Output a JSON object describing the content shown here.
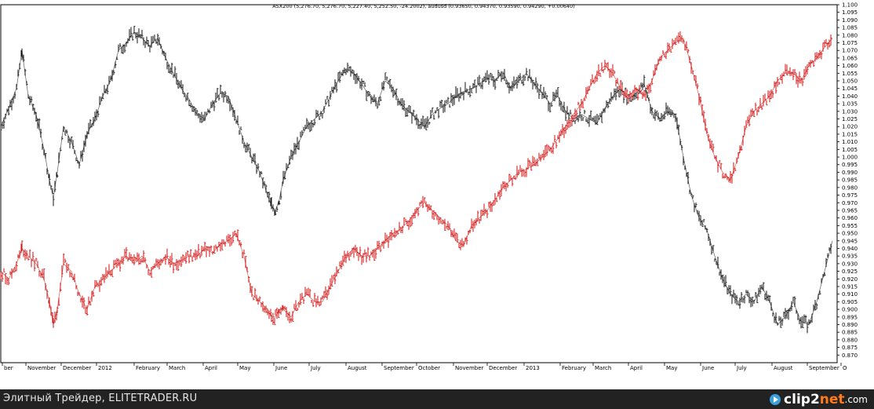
{
  "chart_data": {
    "type": "line",
    "title": "ASX200 (5,276.70, 5,276.70, 5,227.40, 5,252.50, -24.2002), audusd (0.93650, 0.94370, 0.93590, 0.94290, +0.00640)",
    "ylim": [
      0.865,
      1.1
    ],
    "yticks": [
      "1.100",
      "1.095",
      "1.090",
      "1.085",
      "1.080",
      "1.075",
      "1.070",
      "1.065",
      "1.060",
      "1.055",
      "1.050",
      "1.045",
      "1.040",
      "1.035",
      "1.030",
      "1.025",
      "1.020",
      "1.015",
      "1.010",
      "1.005",
      "1.000",
      "0.995",
      "0.990",
      "0.985",
      "0.980",
      "0.975",
      "0.970",
      "0.965",
      "0.960",
      "0.955",
      "0.950",
      "0.945",
      "0.940",
      "0.935",
      "0.930",
      "0.925",
      "0.920",
      "0.915",
      "0.910",
      "0.905",
      "0.900",
      "0.895",
      "0.890",
      "0.885",
      "0.880",
      "0.875",
      "0.870"
    ],
    "xlim": [
      0,
      1066
    ],
    "x_labels": [
      {
        "x": 2,
        "label": "ber"
      },
      {
        "x": 32,
        "label": "November"
      },
      {
        "x": 77,
        "label": "December"
      },
      {
        "x": 122,
        "label": "2012"
      },
      {
        "x": 170,
        "label": "February"
      },
      {
        "x": 212,
        "label": "March"
      },
      {
        "x": 258,
        "label": "April"
      },
      {
        "x": 302,
        "label": "May"
      },
      {
        "x": 348,
        "label": "June"
      },
      {
        "x": 393,
        "label": "July"
      },
      {
        "x": 440,
        "label": "August"
      },
      {
        "x": 486,
        "label": "September"
      },
      {
        "x": 530,
        "label": "October"
      },
      {
        "x": 577,
        "label": "November"
      },
      {
        "x": 620,
        "label": "December"
      },
      {
        "x": 667,
        "label": "2013"
      },
      {
        "x": 713,
        "label": "February"
      },
      {
        "x": 755,
        "label": "March"
      },
      {
        "x": 800,
        "label": "April"
      },
      {
        "x": 846,
        "label": "May"
      },
      {
        "x": 892,
        "label": "June"
      },
      {
        "x": 936,
        "label": "July"
      },
      {
        "x": 983,
        "label": "August"
      },
      {
        "x": 1028,
        "label": "September"
      },
      {
        "x": 1071,
        "label": "O"
      }
    ],
    "series": [
      {
        "name": "ASX200",
        "color": "#111111",
        "x": [
          0,
          10,
          20,
          27,
          35,
          45,
          55,
          62,
          67,
          72,
          80,
          90,
          100,
          110,
          120,
          130,
          140,
          150,
          160,
          170,
          180,
          190,
          200,
          210,
          220,
          230,
          240,
          250,
          260,
          270,
          280,
          290,
          300,
          310,
          320,
          330,
          340,
          345,
          350,
          355,
          360,
          370,
          380,
          390,
          400,
          410,
          420,
          430,
          440,
          450,
          460,
          470,
          480,
          490,
          500,
          510,
          520,
          530,
          540,
          550,
          560,
          570,
          580,
          590,
          600,
          610,
          620,
          630,
          640,
          650,
          660,
          670,
          680,
          690,
          700,
          710,
          720,
          730,
          740,
          750,
          760,
          770,
          780,
          790,
          800,
          810,
          820,
          830,
          840,
          850,
          860,
          870,
          880,
          890,
          900,
          910,
          920,
          930,
          940,
          950,
          960,
          970,
          980,
          990,
          1000,
          1010,
          1020,
          1030,
          1040,
          1050,
          1060
        ],
        "y": [
          1.02,
          1.032,
          1.045,
          1.07,
          1.04,
          1.028,
          1.005,
          0.985,
          0.973,
          0.99,
          1.02,
          1.01,
          0.995,
          1.015,
          1.025,
          1.04,
          1.05,
          1.07,
          1.075,
          1.082,
          1.078,
          1.073,
          1.078,
          1.065,
          1.055,
          1.045,
          1.038,
          1.028,
          1.025,
          1.035,
          1.042,
          1.04,
          1.025,
          1.01,
          1.0,
          0.99,
          0.975,
          0.968,
          0.965,
          0.972,
          0.985,
          1.0,
          1.01,
          1.02,
          1.025,
          1.03,
          1.04,
          1.05,
          1.058,
          1.055,
          1.048,
          1.04,
          1.035,
          1.05,
          1.045,
          1.035,
          1.03,
          1.025,
          1.02,
          1.028,
          1.032,
          1.035,
          1.04,
          1.043,
          1.045,
          1.048,
          1.052,
          1.05,
          1.056,
          1.045,
          1.05,
          1.055,
          1.048,
          1.042,
          1.035,
          1.04,
          1.03,
          1.025,
          1.028,
          1.025,
          1.022,
          1.032,
          1.04,
          1.045,
          1.038,
          1.042,
          1.048,
          1.03,
          1.025,
          1.03,
          1.028,
          1.0,
          0.975,
          0.96,
          0.952,
          0.935,
          0.92,
          0.91,
          0.905,
          0.91,
          0.905,
          0.915,
          0.905,
          0.89,
          0.895,
          0.905,
          0.892,
          0.89,
          0.905,
          0.925,
          0.945
        ]
      },
      {
        "name": "audusd",
        "color": "#cc1111",
        "x": [
          0,
          10,
          20,
          27,
          35,
          45,
          55,
          62,
          67,
          72,
          80,
          90,
          100,
          110,
          120,
          130,
          140,
          150,
          160,
          170,
          180,
          190,
          200,
          210,
          220,
          230,
          240,
          250,
          260,
          270,
          280,
          290,
          300,
          310,
          320,
          330,
          340,
          345,
          350,
          355,
          360,
          370,
          380,
          390,
          400,
          410,
          420,
          430,
          440,
          450,
          460,
          470,
          480,
          490,
          500,
          510,
          520,
          530,
          540,
          550,
          560,
          570,
          580,
          590,
          600,
          610,
          620,
          630,
          640,
          650,
          660,
          670,
          680,
          690,
          700,
          710,
          720,
          730,
          740,
          750,
          760,
          770,
          780,
          790,
          800,
          810,
          820,
          830,
          840,
          850,
          860,
          870,
          880,
          890,
          900,
          910,
          920,
          930,
          940,
          950,
          960,
          970,
          980,
          990,
          1000,
          1010,
          1020,
          1030,
          1040,
          1050,
          1060
        ],
        "y": [
          0.925,
          0.92,
          0.93,
          0.94,
          0.935,
          0.93,
          0.92,
          0.905,
          0.89,
          0.9,
          0.93,
          0.925,
          0.91,
          0.9,
          0.915,
          0.92,
          0.925,
          0.93,
          0.935,
          0.93,
          0.935,
          0.925,
          0.93,
          0.935,
          0.93,
          0.932,
          0.935,
          0.935,
          0.94,
          0.937,
          0.943,
          0.945,
          0.95,
          0.935,
          0.91,
          0.905,
          0.9,
          0.895,
          0.895,
          0.9,
          0.9,
          0.895,
          0.905,
          0.91,
          0.905,
          0.905,
          0.915,
          0.925,
          0.935,
          0.94,
          0.935,
          0.935,
          0.94,
          0.945,
          0.95,
          0.953,
          0.958,
          0.965,
          0.97,
          0.965,
          0.96,
          0.955,
          0.945,
          0.942,
          0.955,
          0.96,
          0.965,
          0.972,
          0.98,
          0.985,
          0.99,
          0.992,
          0.995,
          1.0,
          1.005,
          1.012,
          1.02,
          1.028,
          1.035,
          1.045,
          1.055,
          1.06,
          1.055,
          1.045,
          1.04,
          1.045,
          1.04,
          1.05,
          1.065,
          1.07,
          1.075,
          1.078,
          1.06,
          1.04,
          1.015,
          1.0,
          0.99,
          0.985,
          1.0,
          1.02,
          1.03,
          1.035,
          1.04,
          1.05,
          1.055,
          1.055,
          1.05,
          1.06,
          1.065,
          1.072,
          1.078
        ]
      }
    ]
  },
  "footer": {
    "caption": "Элитный Трейдер, ELITETRADER.RU",
    "logo_main": "clip2",
    "logo_accent": "net",
    "logo_suffix": ".com"
  }
}
